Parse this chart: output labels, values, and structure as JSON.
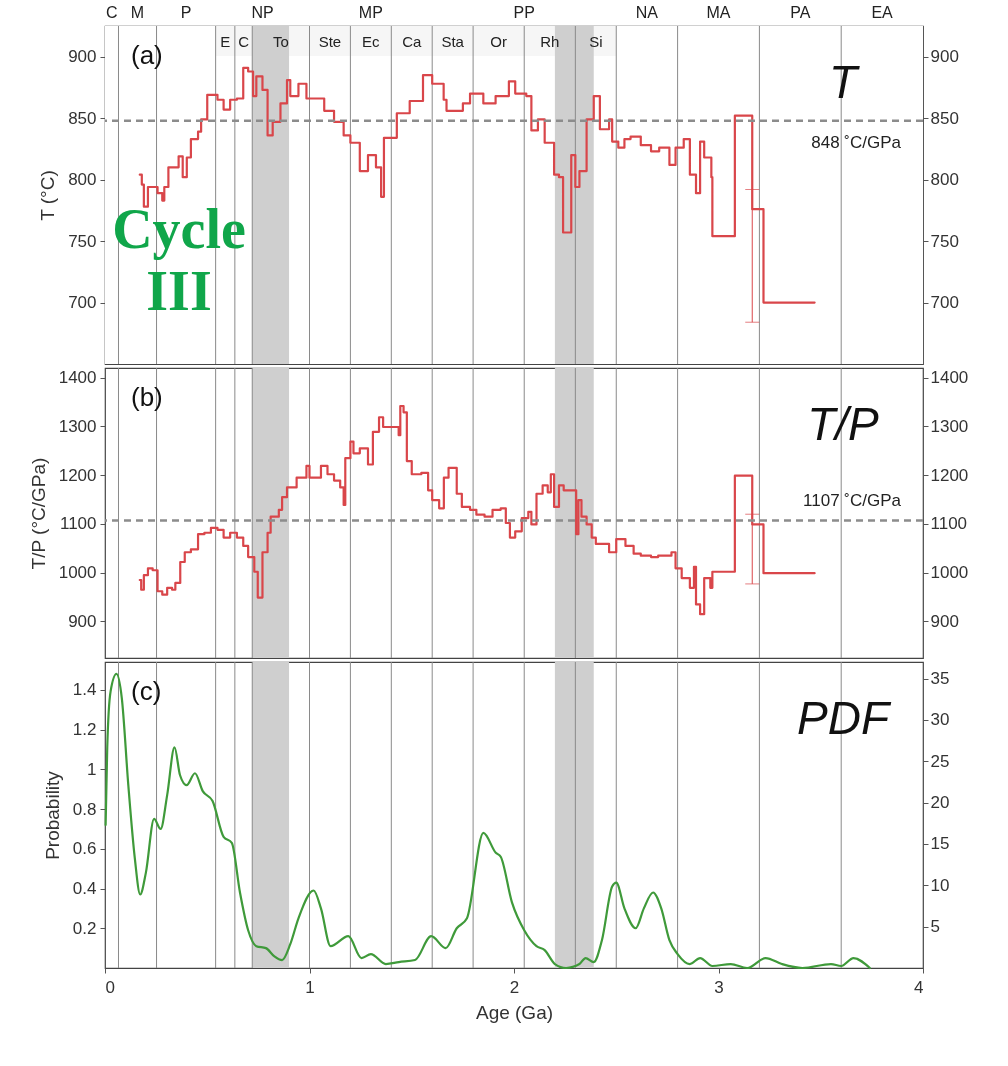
{
  "chart_data": [
    {
      "type": "step",
      "ylabel": "T (°C)",
      "xlim": [
        0,
        4
      ],
      "ylim": [
        650,
        925
      ],
      "yticks": [
        700,
        750,
        800,
        850,
        900
      ],
      "y2lim": [
        650,
        925
      ],
      "y2ticks": [
        700,
        750,
        800,
        850,
        900
      ],
      "tick_labels": "y",
      "series": [
        {
          "color": "#d9464a",
          "x": [
            0.17,
            0.18,
            0.19,
            0.21,
            0.257,
            0.28,
            0.29,
            0.31,
            0.36,
            0.38,
            0.4,
            0.42,
            0.455,
            0.47,
            0.5,
            0.55,
            0.58,
            0.612,
            0.645,
            0.676,
            0.7,
            0.724,
            0.74,
            0.77,
            0.795,
            0.82,
            0.858,
            0.89,
            0.906,
            0.946,
            0.985,
            1.072,
            1.12,
            1.167,
            1.2,
            1.246,
            1.286,
            1.325,
            1.35,
            1.364,
            1.427,
            1.49,
            1.555,
            1.6,
            1.656,
            1.67,
            1.75,
            1.785,
            1.85,
            1.91,
            1.975,
            2.006,
            2.06,
            2.085,
            2.117,
            2.15,
            2.196,
            2.22,
            2.24,
            2.28,
            2.3,
            2.32,
            2.355,
            2.39,
            2.42,
            2.465,
            2.48,
            2.51,
            2.54,
            2.57,
            2.62,
            2.67,
            2.71,
            2.76,
            2.79,
            2.83,
            2.86,
            2.89,
            2.91,
            2.93,
            2.965,
            2.97,
            3.08,
            3.165,
            3.22,
            3.47
          ],
          "values": [
            804,
            796,
            778,
            794,
            789,
            783,
            794,
            810,
            819,
            802,
            818,
            833,
            839,
            849,
            869,
            865,
            857,
            865,
            866,
            891,
            888,
            868,
            884,
            873,
            836,
            847,
            862,
            881,
            868,
            878,
            866,
            856,
            847,
            836,
            830,
            807,
            820,
            810,
            786,
            834,
            854,
            864,
            885,
            878,
            865,
            856,
            862,
            870,
            862,
            868,
            880,
            870,
            868,
            840,
            849,
            830,
            804,
            802,
            757,
            820,
            794,
            807,
            849,
            868,
            841,
            849,
            831,
            826,
            833,
            835,
            828,
            823,
            826,
            812,
            826,
            833,
            804,
            789,
            831,
            818,
            802,
            754,
            852,
            776,
            700,
            700
          ],
          "errors": [
            null,
            null,
            null,
            null,
            null,
            null,
            null,
            null,
            null,
            null,
            null,
            null,
            null,
            null,
            null,
            null,
            null,
            null,
            null,
            null,
            null,
            null,
            null,
            null,
            null,
            null,
            null,
            null,
            null,
            null,
            null,
            null,
            null,
            null,
            null,
            null,
            null,
            null,
            null,
            null,
            null,
            null,
            null,
            null,
            null,
            null,
            null,
            null,
            null,
            null,
            null,
            null,
            null,
            null,
            null,
            null,
            null,
            null,
            null,
            null,
            null,
            null,
            null,
            null,
            null,
            null,
            null,
            null,
            null,
            null,
            null,
            null,
            null,
            null,
            null,
            null,
            null,
            null,
            null,
            null,
            null,
            null,
            null,
            [
              684,
              792
            ],
            null,
            null
          ]
        }
      ],
      "bands": [
        {
          "axis": "x",
          "from": 0,
          "to": 0.066,
          "label": "C",
          "color": "#ffffff"
        },
        {
          "axis": "x",
          "from": 0.066,
          "to": 0.252,
          "label": "M",
          "color": "#ffffff"
        },
        {
          "axis": "x",
          "from": 0.252,
          "to": 0.541,
          "label": "P",
          "color": "#ffffff"
        },
        {
          "axis": "x",
          "from": 0.541,
          "to": 1.0,
          "label": "NP",
          "color": "#ffffff"
        },
        {
          "axis": "x",
          "from": 1.0,
          "to": 1.6,
          "label": "MP",
          "color": "#ffffff"
        },
        {
          "axis": "x",
          "from": 1.6,
          "to": 2.5,
          "label": "PP",
          "color": "#ffffff"
        },
        {
          "axis": "x",
          "from": 2.5,
          "to": 2.8,
          "label": "NA",
          "color": "#ffffff"
        },
        {
          "axis": "x",
          "from": 2.8,
          "to": 3.2,
          "label": "MA",
          "color": "#ffffff"
        },
        {
          "axis": "x",
          "from": 3.2,
          "to": 3.6,
          "label": "PA",
          "color": "#ffffff"
        },
        {
          "axis": "x",
          "from": 3.6,
          "to": 4.0,
          "label": "EA",
          "color": "#ffffff"
        },
        {
          "axis": "x",
          "from": 0.541,
          "to": 0.635,
          "label": "E",
          "color": "#f6f6f6"
        },
        {
          "axis": "x",
          "from": 0.635,
          "to": 0.72,
          "label": "C",
          "color": "#f6f6f6"
        },
        {
          "axis": "x",
          "from": 0.72,
          "to": 1.0,
          "label": "To",
          "color": "#f6f6f6"
        },
        {
          "axis": "x",
          "from": 1.0,
          "to": 1.2,
          "label": "Ste",
          "color": "#f6f6f6"
        },
        {
          "axis": "x",
          "from": 1.2,
          "to": 1.4,
          "label": "Ec",
          "color": "#f6f6f6"
        },
        {
          "axis": "x",
          "from": 1.4,
          "to": 1.6,
          "label": "Ca",
          "color": "#f6f6f6"
        },
        {
          "axis": "x",
          "from": 1.6,
          "to": 1.8,
          "label": "Sta",
          "color": "#f6f6f6"
        },
        {
          "axis": "x",
          "from": 1.8,
          "to": 2.05,
          "label": "Or",
          "color": "#f6f6f6"
        },
        {
          "axis": "x",
          "from": 2.05,
          "to": 2.3,
          "label": "Rh",
          "color": "#f6f6f6"
        },
        {
          "axis": "x",
          "from": 2.3,
          "to": 2.5,
          "label": "Si",
          "color": "#f6f6f6"
        },
        {
          "axis": "x",
          "from": 0.72,
          "to": 0.9,
          "color": "#cfcfcf"
        },
        {
          "axis": "x",
          "from": 2.2,
          "to": 2.39,
          "color": "#cfcfcf"
        }
      ],
      "ref_lines": [
        {
          "axis": "x",
          "value": 0.066,
          "color": "#8a8a8a"
        },
        {
          "axis": "x",
          "value": 0.252,
          "color": "#8a8a8a"
        },
        {
          "axis": "x",
          "value": 0.541,
          "color": "#8a8a8a"
        },
        {
          "axis": "x",
          "value": 0.635,
          "color": "#8a8a8a"
        },
        {
          "axis": "x",
          "value": 0.72,
          "color": "#8a8a8a"
        },
        {
          "axis": "x",
          "value": 1.0,
          "color": "#8a8a8a"
        },
        {
          "axis": "x",
          "value": 1.2,
          "color": "#8a8a8a"
        },
        {
          "axis": "x",
          "value": 1.4,
          "color": "#8a8a8a"
        },
        {
          "axis": "x",
          "value": 1.6,
          "color": "#8a8a8a"
        },
        {
          "axis": "x",
          "value": 1.8,
          "color": "#8a8a8a"
        },
        {
          "axis": "x",
          "value": 2.05,
          "color": "#8a8a8a"
        },
        {
          "axis": "x",
          "value": 2.3,
          "color": "#8a8a8a"
        },
        {
          "axis": "x",
          "value": 2.5,
          "color": "#8a8a8a"
        },
        {
          "axis": "x",
          "value": 2.8,
          "color": "#8a8a8a"
        },
        {
          "axis": "x",
          "value": 3.2,
          "color": "#8a8a8a"
        },
        {
          "axis": "x",
          "value": 3.6,
          "color": "#8a8a8a"
        },
        {
          "axis": "y",
          "value": 848,
          "label": "848 ˚C/GPa",
          "color": "#8c8c8c",
          "line_style": "dashed"
        }
      ],
      "annotations": [
        "(a)",
        "T",
        "Cycle III"
      ]
    },
    {
      "type": "step",
      "ylabel": "T/P (°C/GPa)",
      "xlim": [
        0,
        4
      ],
      "ylim": [
        825,
        1420
      ],
      "yticks": [
        900,
        1000,
        1100,
        1200,
        1300,
        1400
      ],
      "y2lim": [
        825,
        1420
      ],
      "y2ticks": [
        900,
        1000,
        1100,
        1200,
        1300,
        1400
      ],
      "tick_labels": "y",
      "series": [
        {
          "color": "#d9464a",
          "x": [
            0.17,
            0.177,
            0.19,
            0.21,
            0.233,
            0.257,
            0.28,
            0.304,
            0.328,
            0.344,
            0.368,
            0.39,
            0.42,
            0.455,
            0.486,
            0.518,
            0.55,
            0.58,
            0.612,
            0.645,
            0.676,
            0.7,
            0.73,
            0.747,
            0.77,
            0.795,
            0.81,
            0.85,
            0.866,
            0.89,
            0.937,
            0.985,
            1.0,
            1.056,
            1.088,
            1.12,
            1.15,
            1.167,
            1.175,
            1.2,
            1.215,
            1.246,
            1.286,
            1.31,
            1.34,
            1.36,
            1.436,
            1.444,
            1.46,
            1.476,
            1.5,
            1.547,
            1.58,
            1.6,
            1.634,
            1.657,
            1.68,
            1.72,
            1.745,
            1.785,
            1.816,
            1.856,
            1.895,
            1.935,
            1.96,
            1.98,
            2.006,
            2.038,
            2.07,
            2.085,
            2.11,
            2.14,
            2.165,
            2.18,
            2.196,
            2.22,
            2.243,
            2.304,
            2.315,
            2.33,
            2.355,
            2.38,
            2.4,
            2.465,
            2.5,
            2.545,
            2.585,
            2.62,
            2.67,
            2.705,
            2.77,
            2.79,
            2.82,
            2.86,
            2.88,
            2.89,
            2.91,
            2.93,
            2.96,
            2.97,
            3.08,
            3.165,
            3.22,
            3.47
          ],
          "values": [
            985,
            965,
            995,
            1009,
            1005,
            962,
            955,
            969,
            965,
            979,
            1022,
            1042,
            1048,
            1079,
            1082,
            1092,
            1088,
            1072,
            1082,
            1072,
            1055,
            1032,
            1002,
            949,
            1042,
            1082,
            1115,
            1129,
            1155,
            1175,
            1195,
            1219,
            1195,
            1219,
            1202,
            1189,
            1175,
            1139,
            1235,
            1269,
            1245,
            1255,
            1222,
            1289,
            1319,
            1299,
            1282,
            1342,
            1329,
            1229,
            1202,
            1205,
            1169,
            1149,
            1132,
            1195,
            1215,
            1162,
            1135,
            1129,
            1119,
            1115,
            1129,
            1132,
            1102,
            1072,
            1085,
            1112,
            1125,
            1099,
            1162,
            1179,
            1165,
            1202,
            1135,
            1179,
            1169,
            1079,
            1149,
            1115,
            1099,
            1072,
            1059,
            1042,
            1069,
            1055,
            1039,
            1035,
            1032,
            1035,
            1042,
            1009,
            989,
            969,
            1012,
            935,
            915,
            989,
            969,
            1002,
            1199,
            1099,
            999,
            999
          ],
          "errors": [
            null,
            null,
            null,
            null,
            null,
            null,
            null,
            null,
            null,
            null,
            null,
            null,
            null,
            null,
            null,
            null,
            null,
            null,
            null,
            null,
            null,
            null,
            null,
            null,
            null,
            null,
            null,
            null,
            null,
            null,
            null,
            null,
            null,
            null,
            null,
            null,
            null,
            null,
            null,
            null,
            null,
            null,
            null,
            null,
            null,
            null,
            null,
            null,
            null,
            null,
            null,
            null,
            null,
            null,
            null,
            null,
            null,
            null,
            null,
            null,
            null,
            null,
            null,
            null,
            null,
            null,
            null,
            null,
            null,
            null,
            null,
            null,
            null,
            null,
            null,
            null,
            null,
            null,
            null,
            null,
            null,
            null,
            null,
            null,
            null,
            null,
            null,
            null,
            null,
            null,
            null,
            null,
            null,
            null,
            null,
            null,
            null,
            null,
            null,
            null,
            null,
            [
              977,
              1120
            ],
            null,
            null
          ]
        }
      ],
      "bands": [
        {
          "axis": "x",
          "from": 0.72,
          "to": 0.9,
          "color": "#cfcfcf"
        },
        {
          "axis": "x",
          "from": 2.2,
          "to": 2.39,
          "color": "#cfcfcf"
        }
      ],
      "ref_lines": [
        {
          "axis": "x",
          "value": 0.066,
          "color": "#8a8a8a"
        },
        {
          "axis": "x",
          "value": 0.252,
          "color": "#8a8a8a"
        },
        {
          "axis": "x",
          "value": 0.541,
          "color": "#8a8a8a"
        },
        {
          "axis": "x",
          "value": 0.635,
          "color": "#8a8a8a"
        },
        {
          "axis": "x",
          "value": 0.72,
          "color": "#8a8a8a"
        },
        {
          "axis": "x",
          "value": 1.0,
          "color": "#8a8a8a"
        },
        {
          "axis": "x",
          "value": 1.2,
          "color": "#8a8a8a"
        },
        {
          "axis": "x",
          "value": 1.4,
          "color": "#8a8a8a"
        },
        {
          "axis": "x",
          "value": 1.6,
          "color": "#8a8a8a"
        },
        {
          "axis": "x",
          "value": 1.8,
          "color": "#8a8a8a"
        },
        {
          "axis": "x",
          "value": 2.05,
          "color": "#8a8a8a"
        },
        {
          "axis": "x",
          "value": 2.3,
          "color": "#8a8a8a"
        },
        {
          "axis": "x",
          "value": 2.5,
          "color": "#8a8a8a"
        },
        {
          "axis": "x",
          "value": 2.8,
          "color": "#8a8a8a"
        },
        {
          "axis": "x",
          "value": 3.2,
          "color": "#8a8a8a"
        },
        {
          "axis": "x",
          "value": 3.6,
          "color": "#8a8a8a"
        },
        {
          "axis": "y",
          "value": 1107,
          "label": "1107 ˚C/GPa",
          "color": "#8c8c8c",
          "line_style": "dashed"
        }
      ],
      "annotations": [
        "(b)",
        "T/P"
      ]
    },
    {
      "type": "line",
      "ylabel": "Probability",
      "xlabel": "Age (Ga)",
      "xlim": [
        0,
        4
      ],
      "xticks": [
        0,
        1,
        2,
        3,
        4
      ],
      "ylim": [
        0,
        1.54
      ],
      "yticks": [
        0.2,
        0.4,
        0.6,
        0.8,
        1.0,
        1.2,
        1.4
      ],
      "y2lim": [
        0,
        37
      ],
      "y2ticks": [
        5,
        10,
        15,
        20,
        25,
        30,
        35
      ],
      "series": [
        {
          "color": "#3f9a3a",
          "x": [
            0.003,
            0.011,
            0.027,
            0.056,
            0.082,
            0.114,
            0.146,
            0.172,
            0.2,
            0.24,
            0.272,
            0.304,
            0.34,
            0.367,
            0.399,
            0.44,
            0.478,
            0.526,
            0.58,
            0.62,
            0.66,
            0.7,
            0.74,
            0.787,
            0.827,
            0.866,
            0.906,
            0.946,
            1.02,
            1.056,
            1.103,
            1.19,
            1.254,
            1.3,
            1.373,
            1.437,
            1.516,
            1.595,
            1.666,
            1.72,
            1.77,
            1.85,
            1.911,
            1.935,
            1.99,
            2.05,
            2.11,
            2.15,
            2.2,
            2.255,
            2.32,
            2.35,
            2.39,
            2.43,
            2.48,
            2.5,
            2.54,
            2.595,
            2.635,
            2.68,
            2.72,
            2.76,
            2.8,
            2.86,
            2.91,
            2.97,
            3.06,
            3.14,
            3.23,
            3.31,
            3.41,
            3.55,
            3.6,
            3.66,
            3.74
          ],
          "values": [
            0.72,
            1.11,
            1.39,
            1.48,
            1.36,
            0.92,
            0.55,
            0.37,
            0.48,
            0.75,
            0.7,
            0.87,
            1.11,
            0.97,
            0.92,
            0.98,
            0.89,
            0.84,
            0.66,
            0.63,
            0.38,
            0.19,
            0.11,
            0.1,
            0.06,
            0.04,
            0.12,
            0.25,
            0.39,
            0.3,
            0.11,
            0.16,
            0.05,
            0.07,
            0.02,
            0.03,
            0.04,
            0.16,
            0.1,
            0.2,
            0.25,
            0.68,
            0.58,
            0.56,
            0.33,
            0.19,
            0.11,
            0.09,
            0.02,
            0.0,
            0.02,
            0.05,
            0.03,
            0.14,
            0.41,
            0.43,
            0.3,
            0.2,
            0.3,
            0.38,
            0.3,
            0.14,
            0.07,
            0.02,
            0.05,
            0.01,
            0.02,
            0.0,
            0.05,
            0.02,
            0.0,
            0.02,
            0.01,
            0.05,
            0.0
          ]
        }
      ],
      "bands": [
        {
          "axis": "x",
          "from": 0.72,
          "to": 0.9,
          "color": "#cfcfcf"
        },
        {
          "axis": "x",
          "from": 2.2,
          "to": 2.39,
          "color": "#cfcfcf"
        }
      ],
      "ref_lines": [
        {
          "axis": "x",
          "value": 0.066,
          "color": "#8a8a8a"
        },
        {
          "axis": "x",
          "value": 0.252,
          "color": "#8a8a8a"
        },
        {
          "axis": "x",
          "value": 0.541,
          "color": "#8a8a8a"
        },
        {
          "axis": "x",
          "value": 0.635,
          "color": "#8a8a8a"
        },
        {
          "axis": "x",
          "value": 0.72,
          "color": "#8a8a8a"
        },
        {
          "axis": "x",
          "value": 1.0,
          "color": "#8a8a8a"
        },
        {
          "axis": "x",
          "value": 1.2,
          "color": "#8a8a8a"
        },
        {
          "axis": "x",
          "value": 1.4,
          "color": "#8a8a8a"
        },
        {
          "axis": "x",
          "value": 1.6,
          "color": "#8a8a8a"
        },
        {
          "axis": "x",
          "value": 1.8,
          "color": "#8a8a8a"
        },
        {
          "axis": "x",
          "value": 2.05,
          "color": "#8a8a8a"
        },
        {
          "axis": "x",
          "value": 2.3,
          "color": "#8a8a8a"
        },
        {
          "axis": "x",
          "value": 2.5,
          "color": "#8a8a8a"
        },
        {
          "axis": "x",
          "value": 2.8,
          "color": "#8a8a8a"
        },
        {
          "axis": "x",
          "value": 3.2,
          "color": "#8a8a8a"
        },
        {
          "axis": "x",
          "value": 3.6,
          "color": "#8a8a8a"
        }
      ],
      "annotations": [
        "(c)",
        "PDF"
      ]
    }
  ]
}
